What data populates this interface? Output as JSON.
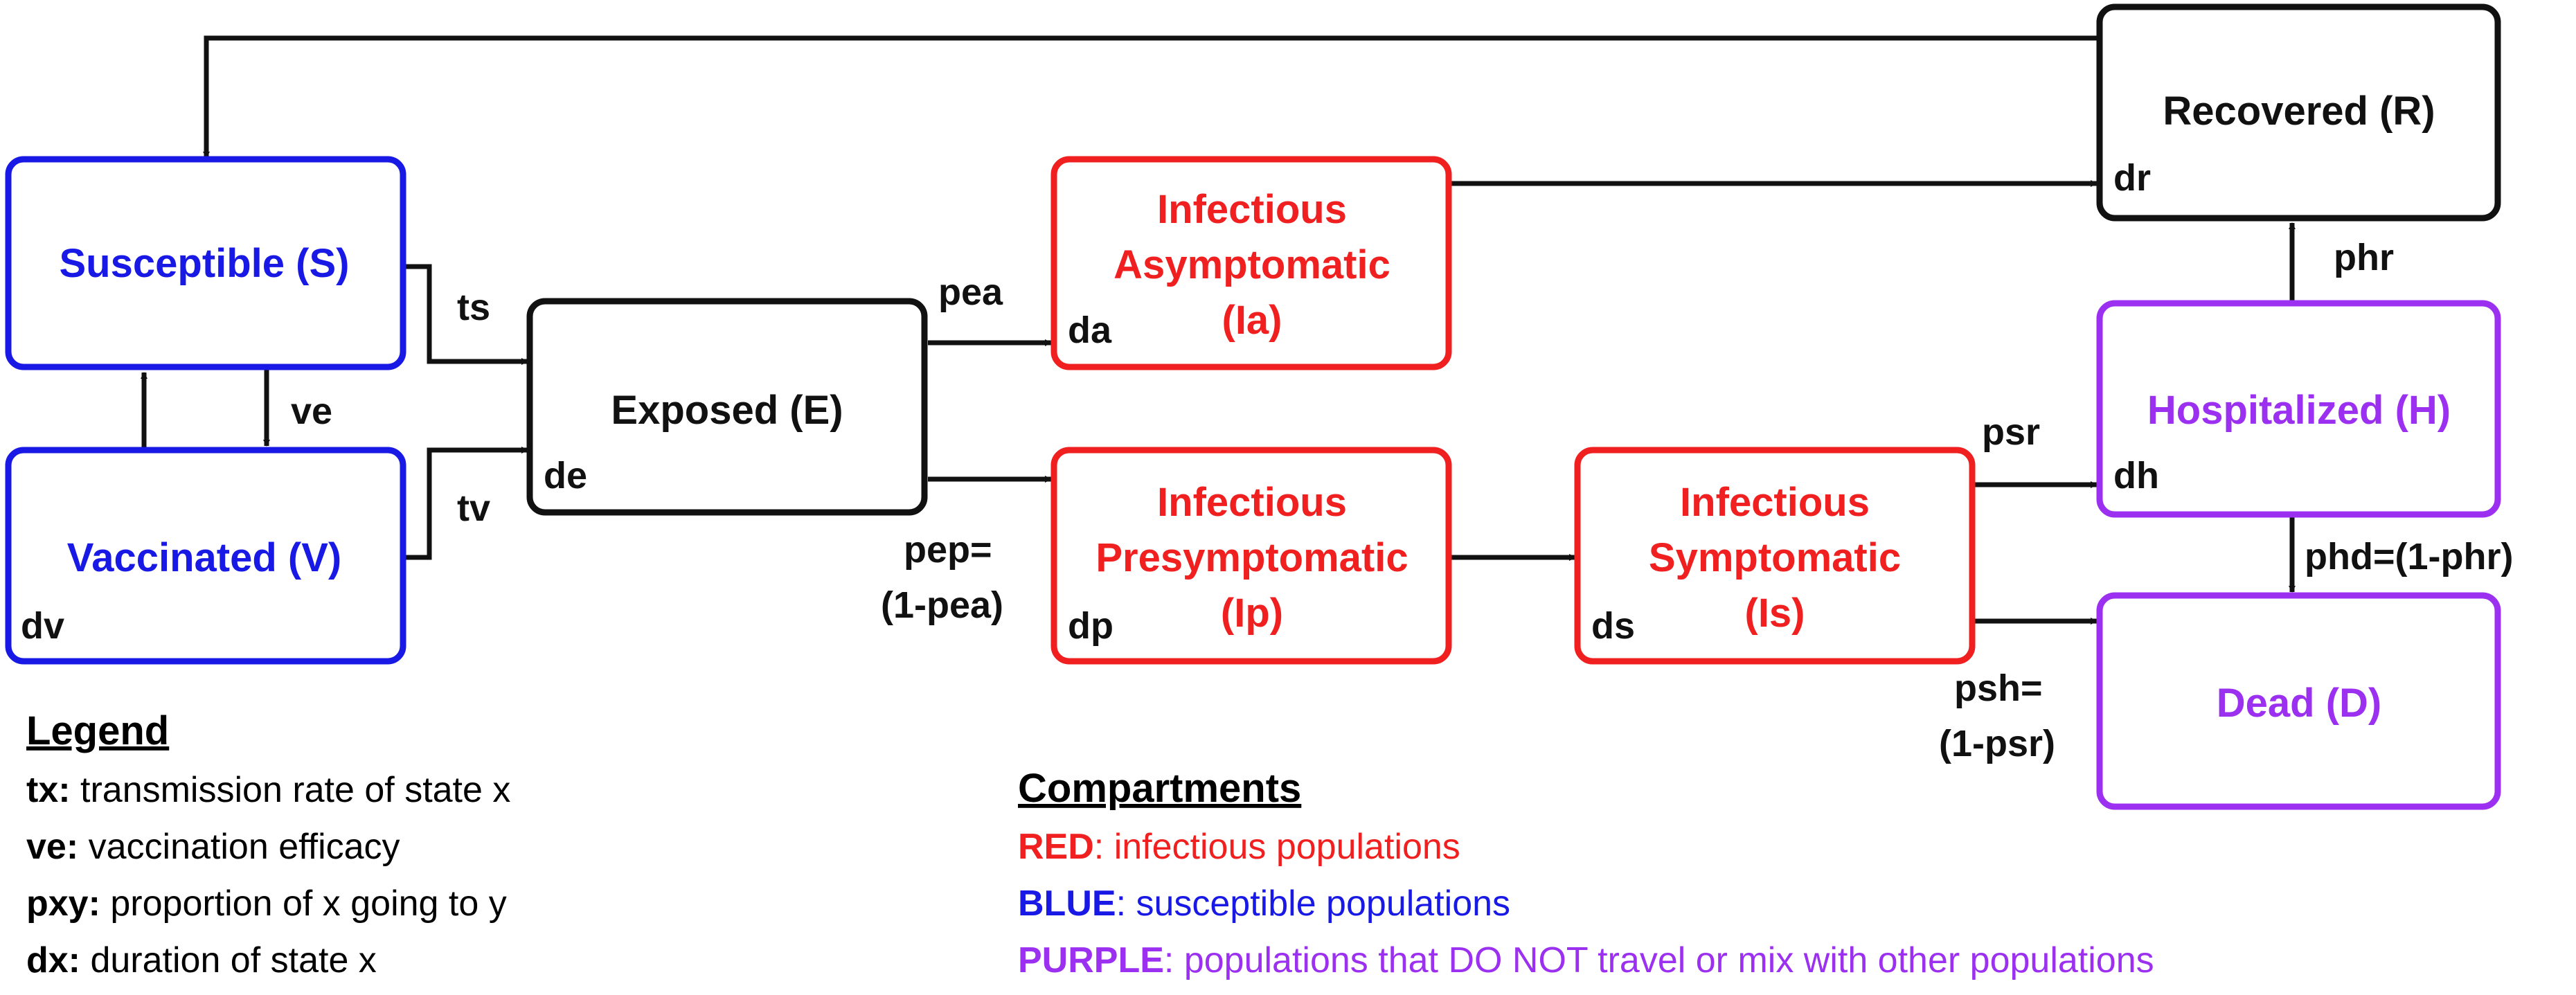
{
  "colors": {
    "blue": "#1919e6",
    "red": "#f02020",
    "purple": "#9b30f0",
    "black": "#111111"
  },
  "nodes": {
    "susceptible": {
      "label": "Susceptible (S)",
      "var": ""
    },
    "vaccinated": {
      "label": "Vaccinated (V)",
      "var": "dv"
    },
    "exposed": {
      "label": "Exposed (E)",
      "var": "de"
    },
    "asymptomatic": {
      "label_line1": "Infectious",
      "label_line2": "Asymptomatic",
      "label_line3": "(Ia)",
      "var": "da"
    },
    "presymptomatic": {
      "label_line1": "Infectious",
      "label_line2": "Presymptomatic",
      "label_line3": "(Ip)",
      "var": "dp"
    },
    "symptomatic": {
      "label_line1": "Infectious",
      "label_line2": "Symptomatic",
      "label_line3": "(Is)",
      "var": "ds"
    },
    "recovered": {
      "label": "Recovered (R)",
      "var": "dr"
    },
    "hospitalized": {
      "label": "Hospitalized (H)",
      "var": "dh"
    },
    "dead": {
      "label": "Dead (D)",
      "var": ""
    }
  },
  "edge_labels": {
    "ts": "ts",
    "tv": "tv",
    "ve": "ve",
    "pea": "pea",
    "pep_line1": "pep=",
    "pep_line2": "(1-pea)",
    "psr": "psr",
    "psh_line1": "psh=",
    "psh_line2": "(1-psr)",
    "phr": "phr",
    "phd": "phd=(1-phr)"
  },
  "legend": {
    "title": "Legend",
    "items": [
      {
        "key": "tx:",
        "text": " transmission rate of state x"
      },
      {
        "key": "ve:",
        "text": " vaccination efficacy"
      },
      {
        "key": "pxy:",
        "text": " proportion of x going to y"
      },
      {
        "key": "dx:",
        "text": " duration of state x"
      }
    ]
  },
  "compartments": {
    "title": "Compartments",
    "items": [
      {
        "key": "RED",
        "text": ": infectious populations",
        "color": "#f02020"
      },
      {
        "key": "BLUE",
        "text": ": susceptible populations",
        "color": "#1919e6"
      },
      {
        "key": "PURPLE",
        "text": ": populations that DO NOT travel or mix with other populations",
        "color": "#9b30f0"
      }
    ]
  }
}
